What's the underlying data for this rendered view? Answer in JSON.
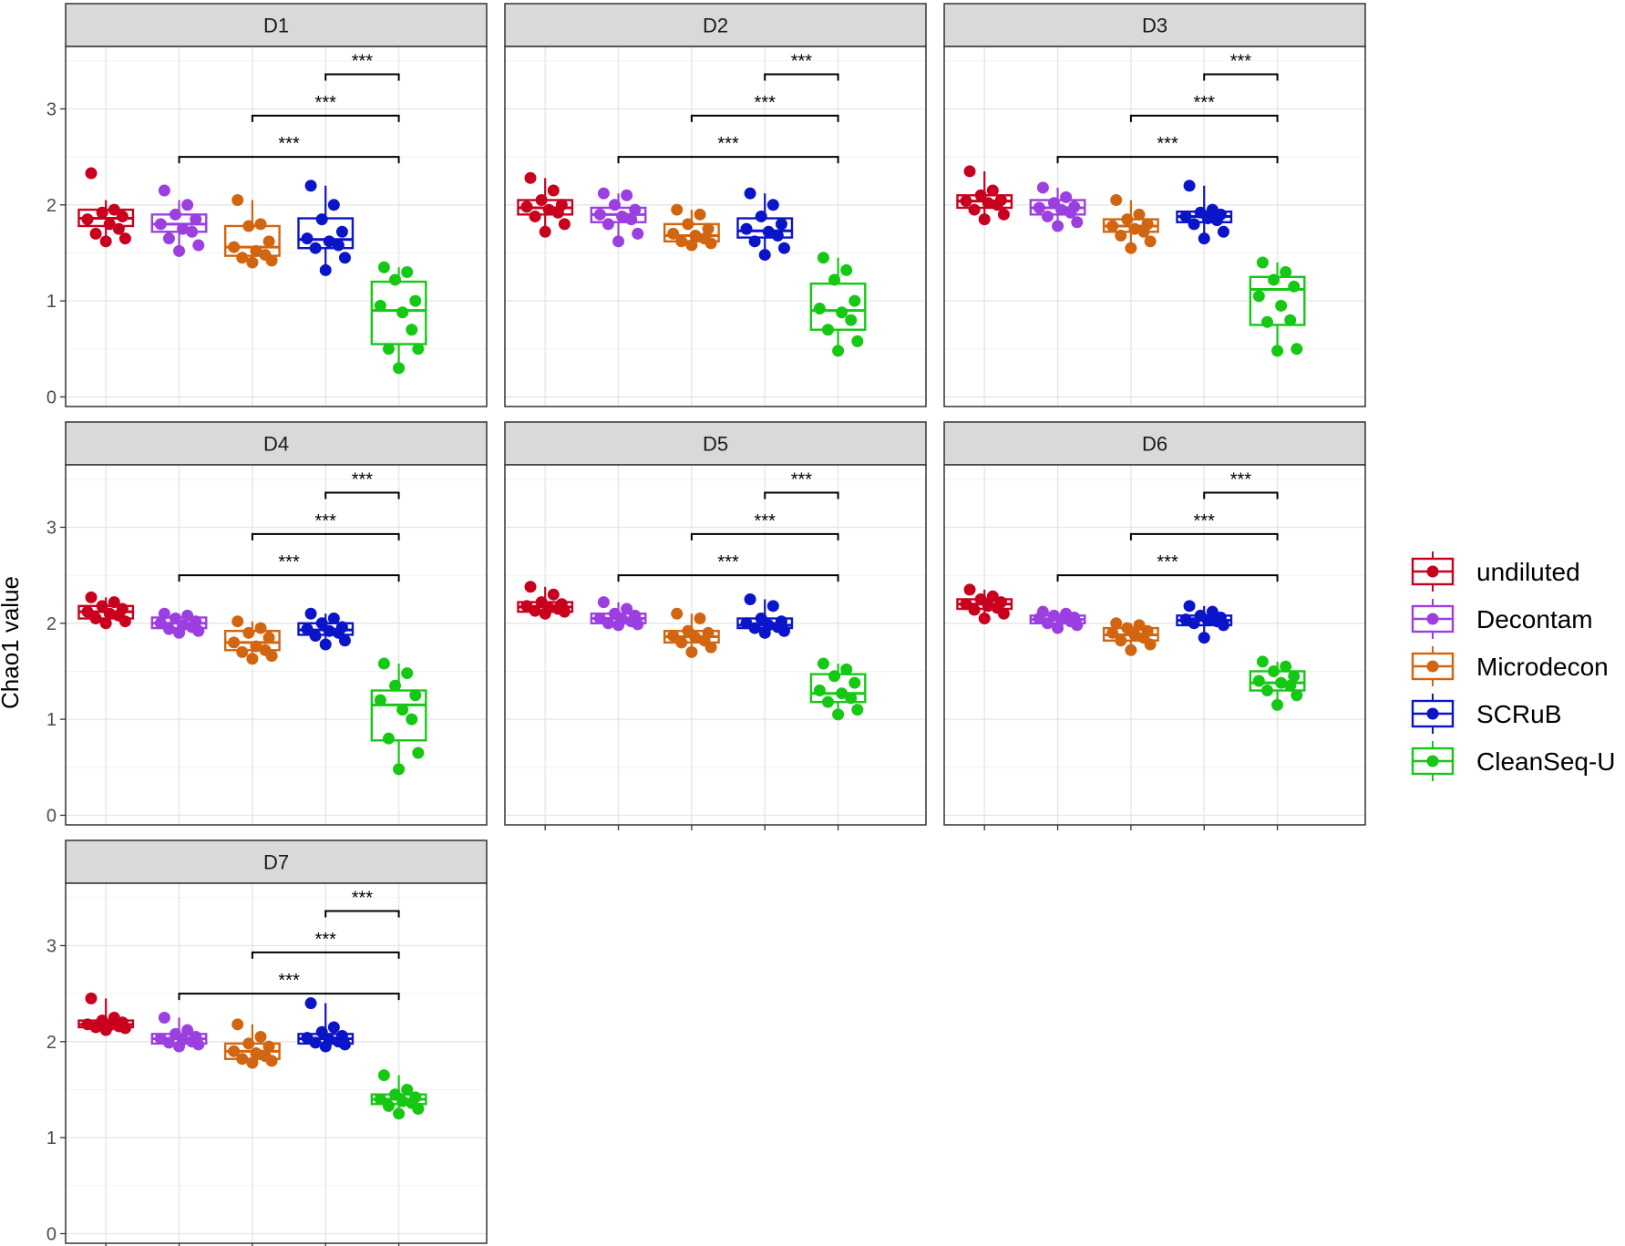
{
  "chart_data": {
    "type": "box",
    "ylabel": "Chao1 value",
    "y_ticks": [
      0,
      1,
      2,
      3
    ],
    "ylim": [
      -0.1,
      3.65
    ],
    "legend_position": "right",
    "grid": true,
    "groups": [
      {
        "name": "undiluted",
        "color": "#c8001e"
      },
      {
        "name": "Decontam",
        "color": "#9b3fe0"
      },
      {
        "name": "Microdecon",
        "color": "#d2650f"
      },
      {
        "name": "SCRuB",
        "color": "#0a14c8"
      },
      {
        "name": "CleanSeq-U",
        "color": "#14c814"
      }
    ],
    "significance_label": "***",
    "panels": [
      {
        "label": "D1",
        "boxes": [
          {
            "q1": 1.78,
            "median": 1.86,
            "q3": 1.95,
            "min": 1.62,
            "max": 2.05,
            "points": [
              2.33,
              1.95,
              1.92,
              1.88,
              1.85,
              1.8,
              1.75,
              1.7,
              1.65,
              1.62
            ]
          },
          {
            "q1": 1.72,
            "median": 1.8,
            "q3": 1.9,
            "min": 1.52,
            "max": 2.05,
            "points": [
              2.15,
              2.0,
              1.9,
              1.85,
              1.8,
              1.75,
              1.72,
              1.65,
              1.58,
              1.52
            ]
          },
          {
            "q1": 1.47,
            "median": 1.56,
            "q3": 1.78,
            "min": 1.4,
            "max": 2.05,
            "points": [
              2.05,
              1.8,
              1.78,
              1.62,
              1.56,
              1.52,
              1.48,
              1.45,
              1.42,
              1.4
            ]
          },
          {
            "q1": 1.55,
            "median": 1.64,
            "q3": 1.86,
            "min": 1.32,
            "max": 2.2,
            "points": [
              2.2,
              2.0,
              1.85,
              1.72,
              1.65,
              1.62,
              1.58,
              1.55,
              1.45,
              1.32
            ]
          },
          {
            "q1": 0.55,
            "median": 0.9,
            "q3": 1.2,
            "min": 0.3,
            "max": 1.35,
            "points": [
              1.35,
              1.3,
              1.22,
              1.0,
              0.95,
              0.88,
              0.7,
              0.5,
              0.5,
              0.3
            ]
          }
        ]
      },
      {
        "label": "D2",
        "boxes": [
          {
            "q1": 1.9,
            "median": 1.97,
            "q3": 2.05,
            "min": 1.72,
            "max": 2.28,
            "points": [
              2.28,
              2.15,
              2.05,
              2.0,
              1.98,
              1.95,
              1.92,
              1.88,
              1.8,
              1.72
            ]
          },
          {
            "q1": 1.82,
            "median": 1.9,
            "q3": 1.97,
            "min": 1.62,
            "max": 2.12,
            "points": [
              2.12,
              2.1,
              2.0,
              1.95,
              1.9,
              1.88,
              1.85,
              1.8,
              1.7,
              1.62
            ]
          },
          {
            "q1": 1.62,
            "median": 1.68,
            "q3": 1.8,
            "min": 1.58,
            "max": 1.95,
            "points": [
              1.95,
              1.9,
              1.8,
              1.75,
              1.7,
              1.68,
              1.65,
              1.62,
              1.6,
              1.58
            ]
          },
          {
            "q1": 1.66,
            "median": 1.73,
            "q3": 1.86,
            "min": 1.48,
            "max": 2.12,
            "points": [
              2.12,
              2.0,
              1.88,
              1.8,
              1.75,
              1.72,
              1.68,
              1.62,
              1.55,
              1.48
            ]
          },
          {
            "q1": 0.7,
            "median": 0.9,
            "q3": 1.18,
            "min": 0.48,
            "max": 1.45,
            "points": [
              1.45,
              1.32,
              1.22,
              1.0,
              0.92,
              0.88,
              0.8,
              0.7,
              0.58,
              0.48
            ]
          }
        ]
      },
      {
        "label": "D3",
        "boxes": [
          {
            "q1": 1.97,
            "median": 2.04,
            "q3": 2.1,
            "min": 1.85,
            "max": 2.35,
            "points": [
              2.35,
              2.15,
              2.1,
              2.05,
              2.04,
              2.02,
              2.0,
              1.95,
              1.9,
              1.85
            ]
          },
          {
            "q1": 1.9,
            "median": 1.97,
            "q3": 2.05,
            "min": 1.78,
            "max": 2.18,
            "points": [
              2.18,
              2.08,
              2.02,
              1.98,
              1.97,
              1.95,
              1.92,
              1.88,
              1.82,
              1.78
            ]
          },
          {
            "q1": 1.72,
            "median": 1.78,
            "q3": 1.85,
            "min": 1.55,
            "max": 2.05,
            "points": [
              2.05,
              1.9,
              1.85,
              1.8,
              1.78,
              1.75,
              1.72,
              1.68,
              1.62,
              1.55
            ]
          },
          {
            "q1": 1.82,
            "median": 1.88,
            "q3": 1.93,
            "min": 1.65,
            "max": 2.2,
            "points": [
              2.2,
              1.95,
              1.92,
              1.9,
              1.88,
              1.86,
              1.84,
              1.8,
              1.72,
              1.65
            ]
          },
          {
            "q1": 0.75,
            "median": 1.12,
            "q3": 1.25,
            "min": 0.48,
            "max": 1.4,
            "points": [
              1.4,
              1.3,
              1.22,
              1.15,
              1.05,
              0.95,
              0.8,
              0.78,
              0.5,
              0.48
            ]
          }
        ]
      },
      {
        "label": "D4",
        "boxes": [
          {
            "q1": 2.05,
            "median": 2.12,
            "q3": 2.18,
            "min": 2.0,
            "max": 2.27,
            "points": [
              2.27,
              2.22,
              2.18,
              2.15,
              2.12,
              2.1,
              2.08,
              2.05,
              2.02,
              2.0
            ]
          },
          {
            "q1": 1.95,
            "median": 2.0,
            "q3": 2.06,
            "min": 1.9,
            "max": 2.1,
            "points": [
              2.1,
              2.08,
              2.05,
              2.02,
              2.0,
              1.98,
              1.96,
              1.94,
              1.92,
              1.9
            ]
          },
          {
            "q1": 1.72,
            "median": 1.8,
            "q3": 1.92,
            "min": 1.63,
            "max": 2.02,
            "points": [
              2.02,
              1.95,
              1.9,
              1.85,
              1.8,
              1.76,
              1.72,
              1.7,
              1.66,
              1.63
            ]
          },
          {
            "q1": 1.88,
            "median": 1.93,
            "q3": 2.0,
            "min": 1.78,
            "max": 2.1,
            "points": [
              2.1,
              2.05,
              2.0,
              1.96,
              1.94,
              1.92,
              1.9,
              1.87,
              1.82,
              1.78
            ]
          },
          {
            "q1": 0.78,
            "median": 1.15,
            "q3": 1.3,
            "min": 0.48,
            "max": 1.58,
            "points": [
              1.58,
              1.48,
              1.35,
              1.25,
              1.2,
              1.1,
              1.0,
              0.8,
              0.65,
              0.48
            ]
          }
        ]
      },
      {
        "label": "D5",
        "boxes": [
          {
            "q1": 2.12,
            "median": 2.17,
            "q3": 2.22,
            "min": 2.1,
            "max": 2.38,
            "points": [
              2.38,
              2.3,
              2.22,
              2.2,
              2.18,
              2.16,
              2.15,
              2.13,
              2.12,
              2.1
            ]
          },
          {
            "q1": 2.0,
            "median": 2.05,
            "q3": 2.1,
            "min": 1.98,
            "max": 2.22,
            "points": [
              2.22,
              2.15,
              2.1,
              2.08,
              2.05,
              2.04,
              2.02,
              2.0,
              1.99,
              1.98
            ]
          },
          {
            "q1": 1.8,
            "median": 1.86,
            "q3": 1.92,
            "min": 1.7,
            "max": 2.1,
            "points": [
              2.1,
              2.05,
              1.92,
              1.9,
              1.87,
              1.85,
              1.82,
              1.8,
              1.75,
              1.7
            ]
          },
          {
            "q1": 1.95,
            "median": 1.98,
            "q3": 2.05,
            "min": 1.9,
            "max": 2.25,
            "points": [
              2.25,
              2.18,
              2.05,
              2.02,
              2.0,
              1.98,
              1.96,
              1.95,
              1.92,
              1.9
            ]
          },
          {
            "q1": 1.18,
            "median": 1.27,
            "q3": 1.47,
            "min": 1.05,
            "max": 1.58,
            "points": [
              1.58,
              1.52,
              1.45,
              1.38,
              1.3,
              1.27,
              1.22,
              1.18,
              1.1,
              1.05
            ]
          }
        ]
      },
      {
        "label": "D6",
        "boxes": [
          {
            "q1": 2.15,
            "median": 2.2,
            "q3": 2.25,
            "min": 2.05,
            "max": 2.35,
            "points": [
              2.35,
              2.28,
              2.25,
              2.22,
              2.2,
              2.18,
              2.16,
              2.14,
              2.1,
              2.05
            ]
          },
          {
            "q1": 2.0,
            "median": 2.04,
            "q3": 2.08,
            "min": 1.95,
            "max": 2.12,
            "points": [
              2.12,
              2.1,
              2.08,
              2.06,
              2.05,
              2.04,
              2.02,
              2.0,
              1.98,
              1.95
            ]
          },
          {
            "q1": 1.82,
            "median": 1.88,
            "q3": 1.95,
            "min": 1.72,
            "max": 2.0,
            "points": [
              2.0,
              1.98,
              1.95,
              1.92,
              1.9,
              1.88,
              1.85,
              1.82,
              1.78,
              1.72
            ]
          },
          {
            "q1": 1.98,
            "median": 2.03,
            "q3": 2.08,
            "min": 1.85,
            "max": 2.18,
            "points": [
              2.18,
              2.12,
              2.08,
              2.06,
              2.04,
              2.03,
              2.02,
              2.0,
              1.98,
              1.85
            ]
          },
          {
            "q1": 1.3,
            "median": 1.38,
            "q3": 1.5,
            "min": 1.15,
            "max": 1.6,
            "points": [
              1.6,
              1.55,
              1.5,
              1.45,
              1.4,
              1.38,
              1.35,
              1.3,
              1.25,
              1.15
            ]
          }
        ]
      },
      {
        "label": "D7",
        "boxes": [
          {
            "q1": 2.15,
            "median": 2.18,
            "q3": 2.22,
            "min": 2.12,
            "max": 2.45,
            "points": [
              2.45,
              2.25,
              2.22,
              2.2,
              2.18,
              2.17,
              2.16,
              2.15,
              2.14,
              2.12
            ]
          },
          {
            "q1": 1.98,
            "median": 2.03,
            "q3": 2.08,
            "min": 1.95,
            "max": 2.25,
            "points": [
              2.25,
              2.12,
              2.08,
              2.05,
              2.03,
              2.02,
              2.0,
              1.99,
              1.97,
              1.95
            ]
          },
          {
            "q1": 1.82,
            "median": 1.9,
            "q3": 1.98,
            "min": 1.78,
            "max": 2.18,
            "points": [
              2.18,
              2.05,
              1.98,
              1.95,
              1.9,
              1.88,
              1.85,
              1.82,
              1.8,
              1.78
            ]
          },
          {
            "q1": 1.98,
            "median": 2.03,
            "q3": 2.08,
            "min": 1.95,
            "max": 2.4,
            "points": [
              2.4,
              2.15,
              2.1,
              2.06,
              2.04,
              2.02,
              2.0,
              1.99,
              1.97,
              1.95
            ]
          },
          {
            "q1": 1.35,
            "median": 1.4,
            "q3": 1.45,
            "min": 1.25,
            "max": 1.65,
            "points": [
              1.65,
              1.5,
              1.45,
              1.42,
              1.4,
              1.38,
              1.36,
              1.33,
              1.3,
              1.25
            ]
          }
        ]
      }
    ]
  }
}
